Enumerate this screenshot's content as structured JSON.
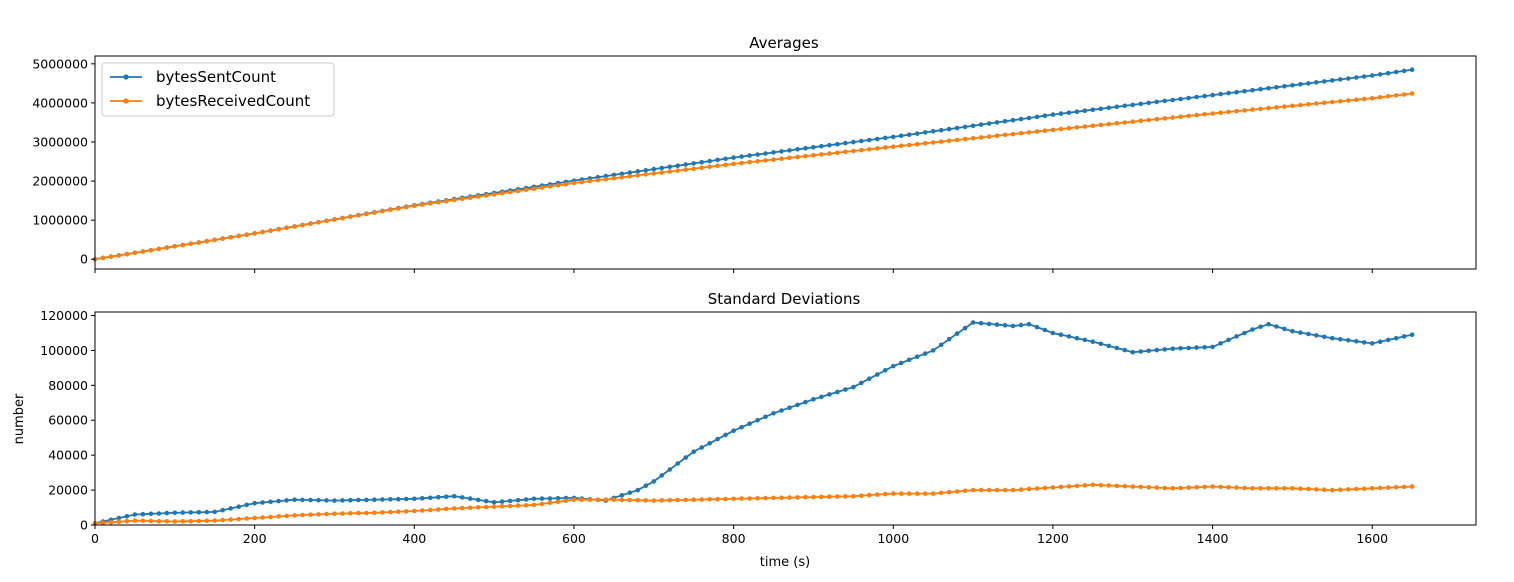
{
  "chart_data": [
    {
      "type": "line",
      "title": "Averages",
      "xlabel": "",
      "ylabel": "",
      "xlim": [
        0,
        1730
      ],
      "ylim": [
        -250000,
        5200000
      ],
      "yticks": [
        0,
        1000000,
        2000000,
        3000000,
        4000000,
        5000000
      ],
      "ytick_labels": [
        "0",
        "1000000",
        "2000000",
        "3000000",
        "4000000",
        "5000000"
      ],
      "grid": false,
      "legend": "top-left",
      "series": [
        {
          "name": "bytesSentCount",
          "color": "#1f77b4",
          "x": [
            0,
            200,
            400,
            600,
            800,
            1000,
            1200,
            1400,
            1600,
            1650
          ],
          "y": [
            0,
            660000,
            1380000,
            2010000,
            2600000,
            3130000,
            3700000,
            4200000,
            4700000,
            4850000
          ]
        },
        {
          "name": "bytesReceivedCount",
          "color": "#ff7f0e",
          "x": [
            0,
            200,
            400,
            600,
            800,
            1000,
            1200,
            1400,
            1600,
            1650
          ],
          "y": [
            0,
            660000,
            1370000,
            1950000,
            2440000,
            2880000,
            3310000,
            3730000,
            4120000,
            4240000
          ]
        }
      ]
    },
    {
      "type": "line",
      "title": "Standard Deviations",
      "xlabel": "time (s)",
      "ylabel": "number",
      "xlim": [
        0,
        1730
      ],
      "ylim": [
        0,
        122000
      ],
      "xticks": [
        0,
        200,
        400,
        600,
        800,
        1000,
        1200,
        1400,
        1600
      ],
      "xtick_labels": [
        "0",
        "200",
        "400",
        "600",
        "800",
        "1000",
        "1200",
        "1400",
        "1600"
      ],
      "yticks": [
        0,
        20000,
        40000,
        60000,
        80000,
        100000,
        120000
      ],
      "ytick_labels": [
        "0",
        "20000",
        "40000",
        "60000",
        "80000",
        "100000",
        "120000"
      ],
      "grid": false,
      "series": [
        {
          "name": "bytesSentCount",
          "color": "#1f77b4",
          "x": [
            0,
            50,
            100,
            150,
            200,
            250,
            300,
            350,
            400,
            450,
            500,
            550,
            600,
            640,
            680,
            700,
            750,
            800,
            850,
            900,
            950,
            1000,
            1050,
            1100,
            1150,
            1170,
            1200,
            1250,
            1300,
            1350,
            1400,
            1450,
            1470,
            1500,
            1550,
            1600,
            1650
          ],
          "y": [
            1000,
            6000,
            7000,
            7500,
            12500,
            14500,
            14000,
            14500,
            15000,
            16500,
            13000,
            15000,
            15500,
            14000,
            20000,
            25000,
            42000,
            54000,
            64000,
            72000,
            79000,
            91000,
            100000,
            116000,
            114000,
            115000,
            110000,
            105000,
            99000,
            101000,
            102000,
            112000,
            115000,
            111000,
            107000,
            104000,
            109000
          ]
        },
        {
          "name": "bytesReceivedCount",
          "color": "#ff7f0e",
          "x": [
            0,
            50,
            100,
            150,
            200,
            250,
            300,
            350,
            400,
            450,
            500,
            550,
            600,
            650,
            700,
            750,
            800,
            850,
            900,
            950,
            1000,
            1050,
            1100,
            1150,
            1200,
            1250,
            1300,
            1350,
            1400,
            1450,
            1500,
            1550,
            1600,
            1650
          ],
          "y": [
            1000,
            2500,
            2000,
            2500,
            4000,
            5500,
            6500,
            7000,
            8000,
            9500,
            10500,
            11500,
            14500,
            14500,
            14000,
            14500,
            15000,
            15500,
            16000,
            16500,
            18000,
            18000,
            20000,
            20000,
            21500,
            23000,
            22000,
            21000,
            22000,
            21000,
            21000,
            20000,
            21000,
            22000
          ]
        }
      ]
    }
  ]
}
